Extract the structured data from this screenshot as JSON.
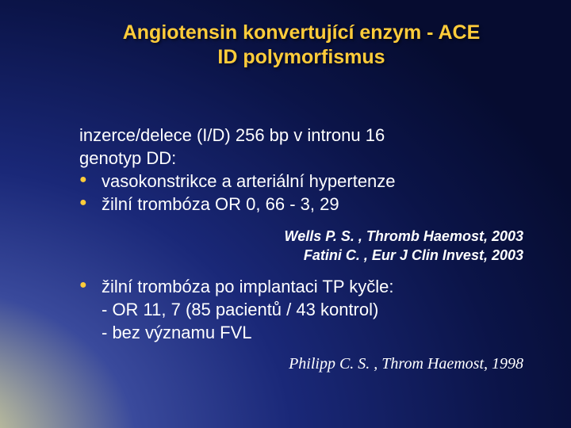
{
  "colors": {
    "title": "#ffcc3a",
    "bullet": "#ffcc3a",
    "text": "#ffffff",
    "bg_center": "#d8d8b8",
    "bg_mid": "#1a2878",
    "bg_edge": "#060c30"
  },
  "typography": {
    "title_fontsize": 25,
    "body_fontsize": 22,
    "cite_fontsize": 18,
    "cite2_fontsize": 20,
    "title_weight": "bold"
  },
  "title_line1": "Angiotensin konvertující enzym - ACE",
  "title_line2": "ID polymorfismus",
  "intro_line1": "inzerce/delece (I/D)  256 bp v intronu 16",
  "intro_line2": "genotyp DD:",
  "bullets1": {
    "0": "vasokonstrikce a arteriální hypertenze",
    "1": "žilní trombóza OR 0, 66 - 3, 29"
  },
  "cite1": {
    "0": "Wells P. S. , Thromb Haemost, 2003",
    "1": "Fatini C. , Eur J Clin Invest, 2003"
  },
  "bullet2": "žilní trombóza po implantaci TP kyčle:",
  "bullet2_sub": {
    "0": "- OR 11, 7 (85 pacientů / 43 kontrol)",
    "1": "- bez významu FVL"
  },
  "cite2": "Philipp C. S. , Throm Haemost, 1998"
}
